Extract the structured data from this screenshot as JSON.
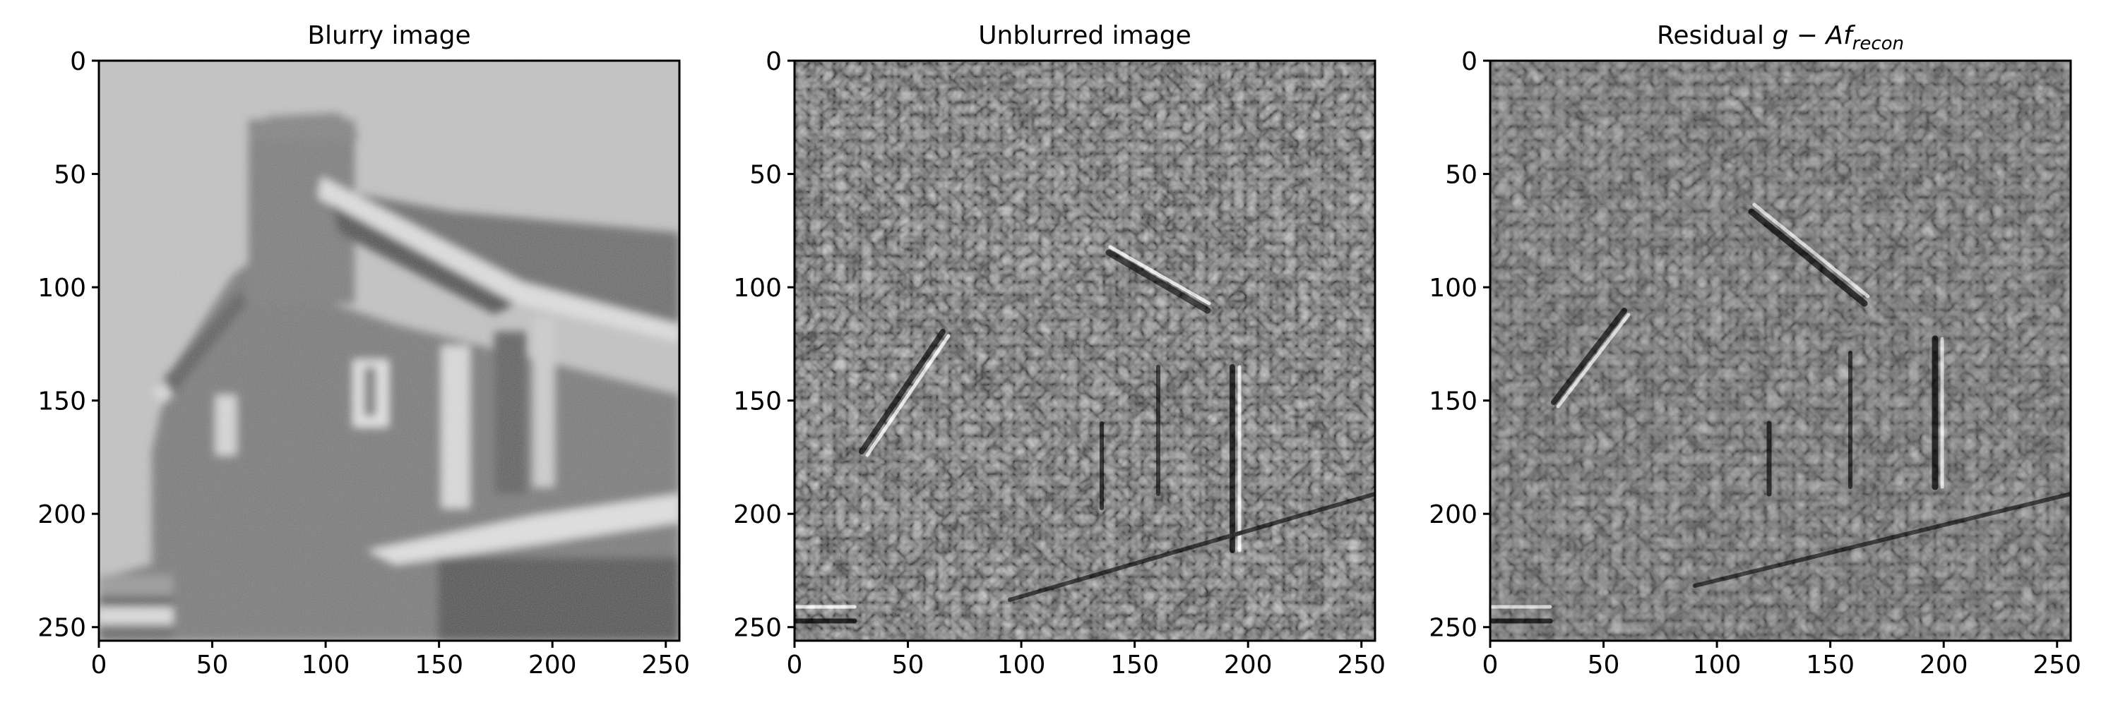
{
  "panels": [
    {
      "title": "Blurry image",
      "title_parts": [],
      "image": "blurred-house-photo",
      "x_ticks": [
        "0",
        "50",
        "100",
        "150",
        "200",
        "250"
      ],
      "y_ticks": [
        "0",
        "50",
        "100",
        "150",
        "200",
        "250"
      ]
    },
    {
      "title": "Unblurred image",
      "title_parts": [],
      "image": "deblurred-house-noisy-texture",
      "x_ticks": [
        "0",
        "50",
        "100",
        "150",
        "200",
        "250"
      ],
      "y_ticks": [
        "0",
        "50",
        "100",
        "150",
        "200",
        "250"
      ]
    },
    {
      "title": "",
      "title_parts": [
        "Residual ",
        "g",
        " − ",
        "Af",
        "recon"
      ],
      "image": "residual-map-gray-texture",
      "x_ticks": [
        "0",
        "50",
        "100",
        "150",
        "200",
        "250"
      ],
      "y_ticks": [
        "0",
        "50",
        "100",
        "150",
        "200",
        "250"
      ]
    }
  ],
  "axis_range": [
    0,
    256
  ],
  "colormap": "gray"
}
